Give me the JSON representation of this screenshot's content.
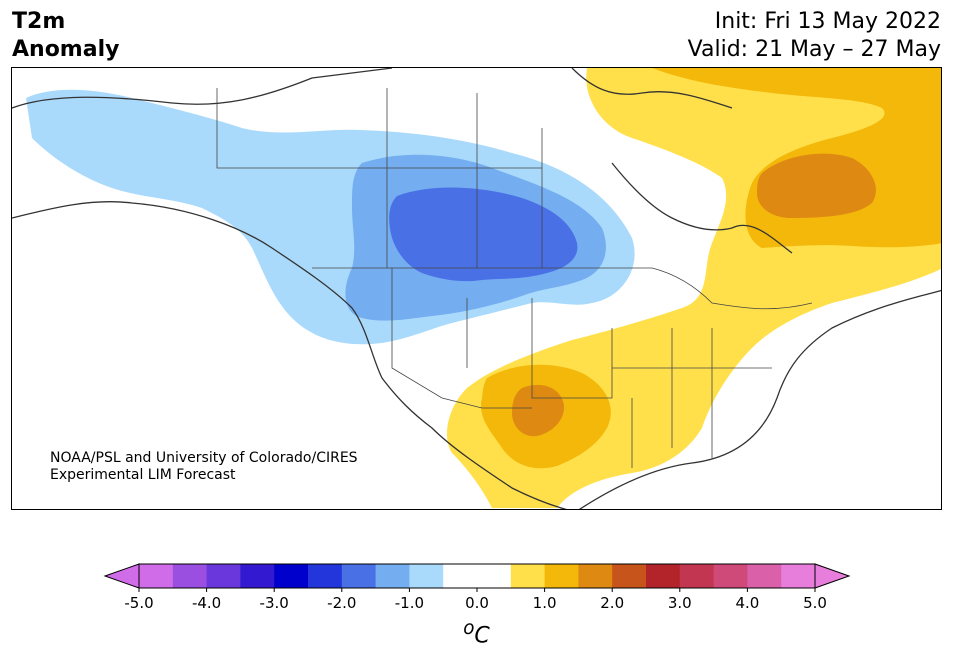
{
  "title": {
    "left_line1": "T2m",
    "left_line2": "Anomaly",
    "right_line1": "Init: Fri 13 May 2022",
    "right_line2": "Valid: 21 May – 27 May"
  },
  "credit": {
    "line1": "NOAA/PSL and University of Colorado/CIRES",
    "line2": "Experimental LIM Forecast"
  },
  "colorbar": {
    "unit": "oC",
    "ticks": [
      "-5.0",
      "-4.0",
      "-3.0",
      "-2.0",
      "-1.0",
      "0.0",
      "1.0",
      "2.0",
      "3.0",
      "4.0",
      "5.0"
    ],
    "tick_values": [
      -5,
      -4,
      -3,
      -2,
      -1,
      0,
      1,
      2,
      3,
      4,
      5
    ],
    "colors": [
      "#d16ce9",
      "#9a4fe0",
      "#6a37dc",
      "#3319cf",
      "#0000cc",
      "#2236db",
      "#4a70e6",
      "#74aef1",
      "#aadafb",
      "#ffffff",
      "#ffffff",
      "#ffe04a",
      "#f4b80a",
      "#de8a12",
      "#c7541a",
      "#b2242a",
      "#c33652",
      "#cf4a78",
      "#da60aa",
      "#e77edb"
    ],
    "extend_low": "#d16ce9",
    "extend_high": "#e77edb"
  },
  "legend_colors": {
    "cold_1": "#aadafb",
    "cold_2": "#74aef1",
    "cold_3": "#4a70e6",
    "warm_1": "#ffe04a",
    "warm_2": "#f4b80a",
    "warm_3": "#de8a12"
  }
}
